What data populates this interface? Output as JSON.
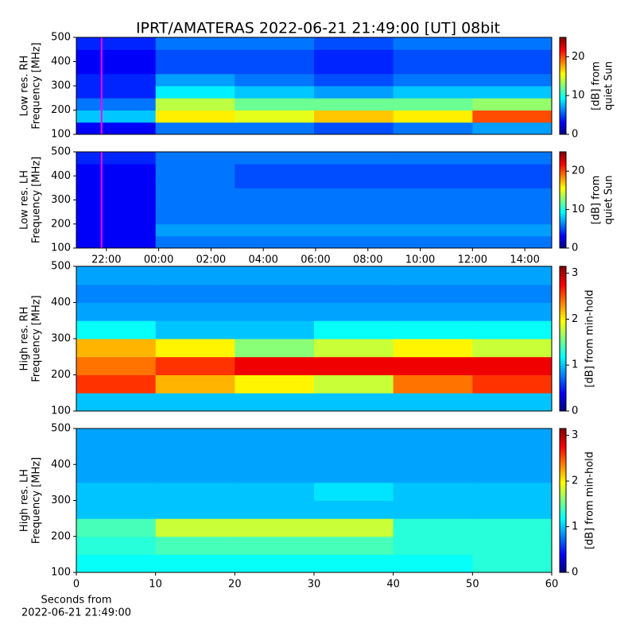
{
  "chart_data": [
    {
      "type": "heatmap",
      "title": "IPRT/AMATERAS 2022-06-21 21:49:00 [UT]   08bit",
      "ylabel": [
        "Low res. RH",
        "Frequency [MHz]"
      ],
      "x_bins": [
        20.85,
        23.88,
        26.91,
        29.94,
        32.97,
        36.0,
        39.03
      ],
      "xlim": [
        20.85,
        39.03
      ],
      "y_bins": [
        100,
        150,
        200,
        250,
        300,
        350,
        400,
        450,
        500
      ],
      "ylim": [
        100,
        500
      ],
      "yticks": [
        100,
        200,
        300,
        400,
        500
      ],
      "values": [
        [
          3,
          6,
          6,
          5,
          6,
          7
        ],
        [
          8,
          16,
          15,
          17,
          16,
          20
        ],
        [
          6,
          14,
          12,
          12,
          12,
          13
        ],
        [
          4,
          9,
          8,
          7,
          8,
          8
        ],
        [
          4,
          7,
          6,
          5,
          6,
          6
        ],
        [
          3,
          5,
          5,
          4,
          5,
          5
        ],
        [
          3,
          5,
          5,
          4,
          5,
          5
        ],
        [
          4,
          6,
          6,
          5,
          6,
          6
        ]
      ],
      "colormap": "jet",
      "clim": [
        0,
        25
      ],
      "cticks": [
        0,
        10,
        20
      ],
      "clabel": [
        "[dB] from",
        "quiet Sun"
      ],
      "marker_x": 21.8167,
      "marker_color": "#ff00ff"
    },
    {
      "type": "heatmap",
      "ylabel": [
        "Low res. LH",
        "Frequency [MHz]"
      ],
      "x_bins": [
        20.85,
        23.88,
        26.91,
        29.94,
        32.97,
        36.0,
        39.03
      ],
      "xlim": [
        20.85,
        39.03
      ],
      "xticks": [
        {
          "value": 22,
          "label": "22:00"
        },
        {
          "value": 24,
          "label": "00:00"
        },
        {
          "value": 26,
          "label": "02:00"
        },
        {
          "value": 28,
          "label": "04:00"
        },
        {
          "value": 30,
          "label": "06:00"
        },
        {
          "value": 32,
          "label": "08:00"
        },
        {
          "value": 34,
          "label": "10:00"
        },
        {
          "value": 36,
          "label": "12:00"
        },
        {
          "value": 38,
          "label": "14:00"
        }
      ],
      "y_bins": [
        100,
        150,
        200,
        250,
        300,
        350,
        400,
        450,
        500
      ],
      "ylim": [
        100,
        500
      ],
      "yticks": [
        100,
        200,
        300,
        400,
        500
      ],
      "values": [
        [
          3,
          6,
          6,
          6,
          6,
          6
        ],
        [
          3,
          7,
          7,
          7,
          7,
          7
        ],
        [
          3,
          6,
          6,
          6,
          6,
          6
        ],
        [
          3,
          6,
          6,
          6,
          6,
          6
        ],
        [
          3,
          6,
          6,
          6,
          6,
          6
        ],
        [
          3,
          6,
          5,
          5,
          5,
          5
        ],
        [
          3,
          6,
          5,
          5,
          5,
          5
        ],
        [
          4,
          6,
          6,
          6,
          6,
          6
        ]
      ],
      "colormap": "jet",
      "clim": [
        0,
        25
      ],
      "cticks": [
        0,
        10,
        20
      ],
      "clabel": [
        "[dB] from",
        "quiet Sun"
      ],
      "marker_x": 21.8167,
      "marker_color": "#ff00ff"
    },
    {
      "type": "heatmap",
      "ylabel": [
        "High res. RH",
        "Frequency [MHz]"
      ],
      "x_bins": [
        0,
        10,
        20,
        30,
        40,
        50,
        60
      ],
      "xlim": [
        0,
        60
      ],
      "y_bins": [
        100,
        150,
        200,
        250,
        300,
        350,
        400,
        450,
        500
      ],
      "ylim": [
        100,
        500
      ],
      "yticks": [
        100,
        200,
        300,
        400,
        500
      ],
      "values": [
        [
          1.0,
          1.0,
          1.0,
          1.0,
          1.0,
          1.0
        ],
        [
          2.6,
          2.2,
          2.0,
          1.8,
          2.4,
          2.6
        ],
        [
          2.4,
          2.6,
          2.8,
          2.8,
          2.8,
          2.8
        ],
        [
          2.2,
          2.0,
          1.6,
          1.8,
          2.0,
          1.8
        ],
        [
          1.2,
          1.0,
          1.0,
          1.2,
          1.2,
          1.2
        ],
        [
          0.9,
          0.9,
          0.9,
          0.9,
          0.9,
          0.9
        ],
        [
          0.8,
          0.8,
          0.8,
          0.8,
          0.8,
          0.8
        ],
        [
          0.9,
          0.9,
          0.9,
          0.9,
          0.9,
          0.9
        ]
      ],
      "colormap": "jet",
      "clim": [
        0,
        3.15
      ],
      "cticks": [
        0,
        1,
        2,
        3
      ],
      "clabel": [
        "[dB] from min-hold"
      ]
    },
    {
      "type": "heatmap",
      "ylabel": [
        "High res. LH",
        "Frequency [MHz]"
      ],
      "xlabel": [
        "Seconds from",
        "2022-06-21 21:49:00"
      ],
      "x_bins": [
        0,
        10,
        20,
        30,
        40,
        50,
        60
      ],
      "xlim": [
        0,
        60
      ],
      "xticks": [
        0,
        10,
        20,
        30,
        40,
        50,
        60
      ],
      "y_bins": [
        100,
        150,
        200,
        250,
        300,
        350,
        400,
        450,
        500
      ],
      "ylim": [
        100,
        500
      ],
      "yticks": [
        100,
        200,
        300,
        400,
        500
      ],
      "values": [
        [
          1.2,
          1.2,
          1.2,
          1.2,
          1.2,
          1.3
        ],
        [
          1.3,
          1.4,
          1.4,
          1.4,
          1.3,
          1.3
        ],
        [
          1.4,
          1.8,
          1.8,
          1.8,
          1.3,
          1.3
        ],
        [
          1.0,
          1.0,
          1.0,
          1.0,
          1.0,
          1.0
        ],
        [
          1.0,
          1.0,
          1.0,
          1.1,
          1.0,
          1.0
        ],
        [
          0.9,
          0.9,
          0.9,
          0.9,
          0.9,
          0.9
        ],
        [
          0.9,
          0.9,
          0.9,
          0.9,
          0.9,
          0.9
        ],
        [
          0.9,
          0.9,
          0.9,
          0.9,
          0.9,
          0.9
        ]
      ],
      "colormap": "jet",
      "clim": [
        0,
        3.15
      ],
      "cticks": [
        0,
        1,
        2,
        3
      ],
      "clabel": [
        "[dB] from min-hold"
      ]
    }
  ]
}
